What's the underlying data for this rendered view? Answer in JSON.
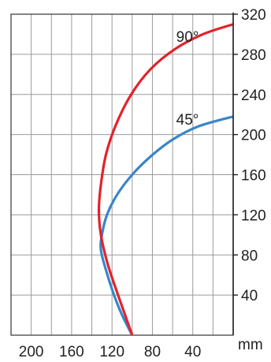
{
  "chart_data": {
    "type": "line",
    "title": "",
    "xlabel": "",
    "ylabel": "",
    "x_unit": "mm",
    "x_reversed": true,
    "xlim": [
      0,
      220
    ],
    "ylim": [
      0,
      320
    ],
    "x_ticks": [
      200,
      160,
      120,
      80,
      40
    ],
    "y_ticks": [
      40,
      80,
      120,
      160,
      200,
      240,
      280,
      320
    ],
    "grid": true,
    "legend": "none",
    "series": [
      {
        "name": "90°",
        "color": "#e3222b",
        "points": [
          {
            "x": 100,
            "y": 0
          },
          {
            "x": 107,
            "y": 20
          },
          {
            "x": 114,
            "y": 40
          },
          {
            "x": 124,
            "y": 70
          },
          {
            "x": 131,
            "y": 100
          },
          {
            "x": 133,
            "y": 125
          },
          {
            "x": 131,
            "y": 150
          },
          {
            "x": 126,
            "y": 180
          },
          {
            "x": 116,
            "y": 210
          },
          {
            "x": 101,
            "y": 240
          },
          {
            "x": 82,
            "y": 265
          },
          {
            "x": 58,
            "y": 285
          },
          {
            "x": 30,
            "y": 300
          },
          {
            "x": 0,
            "y": 310
          }
        ]
      },
      {
        "name": "45°",
        "color": "#3a86c8",
        "points": [
          {
            "x": 100,
            "y": 0
          },
          {
            "x": 110,
            "y": 20
          },
          {
            "x": 118,
            "y": 40
          },
          {
            "x": 126,
            "y": 65
          },
          {
            "x": 131,
            "y": 85
          },
          {
            "x": 130,
            "y": 100
          },
          {
            "x": 125,
            "y": 120
          },
          {
            "x": 115,
            "y": 140
          },
          {
            "x": 100,
            "y": 160
          },
          {
            "x": 82,
            "y": 178
          },
          {
            "x": 60,
            "y": 195
          },
          {
            "x": 35,
            "y": 208
          },
          {
            "x": 0,
            "y": 218
          }
        ]
      }
    ]
  }
}
